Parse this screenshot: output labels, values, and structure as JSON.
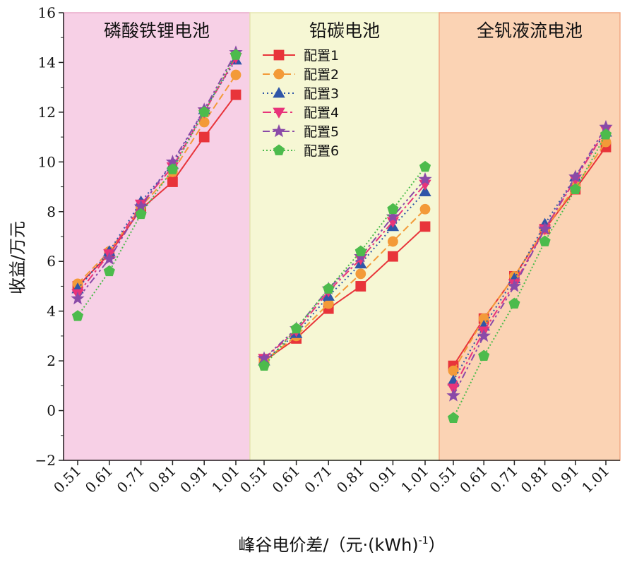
{
  "chart_data": {
    "type": "line",
    "ylabel": "收益/万元",
    "xlabel": "峰谷电价差/（元·(kWh)",
    "xlabel_sup": "-1",
    "xlabel_close": "）",
    "ylim": [
      -2,
      16
    ],
    "yticks": [
      -2,
      0,
      2,
      4,
      6,
      8,
      10,
      12,
      14,
      16
    ],
    "categories": [
      "0.51",
      "0.61",
      "0.71",
      "0.81",
      "0.91",
      "1.01"
    ],
    "legend_location": "top-left of middle panel",
    "panels": [
      {
        "title": "磷酸铁锂电池",
        "bg": "#f7d0e6",
        "series": [
          {
            "name": "配置1",
            "values": [
              5.0,
              6.3,
              8.1,
              9.2,
              11.0,
              12.7
            ]
          },
          {
            "name": "配置2",
            "values": [
              5.1,
              6.4,
              8.2,
              9.6,
              11.6,
              13.5
            ]
          },
          {
            "name": "配置3",
            "values": [
              4.9,
              6.4,
              8.4,
              9.9,
              12.1,
              14.1
            ]
          },
          {
            "name": "配置4",
            "values": [
              4.7,
              6.3,
              8.3,
              9.8,
              12.0,
              14.2
            ]
          },
          {
            "name": "配置5",
            "values": [
              4.5,
              6.1,
              8.2,
              10.0,
              12.1,
              14.4
            ]
          },
          {
            "name": "配置6",
            "values": [
              3.8,
              5.6,
              7.9,
              9.7,
              12.0,
              14.3
            ]
          }
        ]
      },
      {
        "title": "铅碳电池",
        "bg": "#f6f7d4",
        "series": [
          {
            "name": "配置1",
            "values": [
              2.0,
              2.9,
              4.1,
              5.0,
              6.2,
              7.4
            ]
          },
          {
            "name": "配置2",
            "values": [
              2.0,
              3.0,
              4.3,
              5.5,
              6.8,
              8.1
            ]
          },
          {
            "name": "配置3",
            "values": [
              2.0,
              3.1,
              4.6,
              5.9,
              7.4,
              8.8
            ]
          },
          {
            "name": "配置4",
            "values": [
              2.1,
              3.2,
              4.8,
              6.1,
              7.6,
              9.1
            ]
          },
          {
            "name": "配置5",
            "values": [
              2.1,
              3.3,
              4.9,
              6.2,
              7.8,
              9.3
            ]
          },
          {
            "name": "配置6",
            "values": [
              1.8,
              3.3,
              4.9,
              6.4,
              8.1,
              9.8
            ]
          }
        ]
      },
      {
        "title": "全钒液流电池",
        "bg": "#fbd3b4",
        "series": [
          {
            "name": "配置1",
            "values": [
              1.8,
              3.7,
              5.4,
              7.3,
              8.9,
              10.6
            ]
          },
          {
            "name": "配置2",
            "values": [
              1.6,
              3.7,
              5.4,
              7.3,
              9.0,
              10.8
            ]
          },
          {
            "name": "配置3",
            "values": [
              1.2,
              3.4,
              5.3,
              7.5,
              9.4,
              11.2
            ]
          },
          {
            "name": "配置4",
            "values": [
              0.9,
              3.2,
              5.1,
              7.3,
              9.3,
              11.3
            ]
          },
          {
            "name": "配置5",
            "values": [
              0.6,
              3.0,
              5.0,
              7.3,
              9.4,
              11.4
            ]
          },
          {
            "name": "配置6",
            "values": [
              -0.3,
              2.2,
              4.3,
              6.8,
              8.9,
              11.1
            ]
          }
        ]
      }
    ],
    "styles": [
      {
        "name": "配置1",
        "color": "#e8343a",
        "marker": "square",
        "dash": ""
      },
      {
        "name": "配置2",
        "color": "#f39a38",
        "marker": "circle",
        "dash": "10,5"
      },
      {
        "name": "配置3",
        "color": "#2f56a8",
        "marker": "triangle-up",
        "dash": "2,4"
      },
      {
        "name": "配置4",
        "color": "#e8347a",
        "marker": "triangle-down",
        "dash": "12,4,3,4"
      },
      {
        "name": "配置5",
        "color": "#8a4aa8",
        "marker": "star",
        "dash": "10,4,3,4,3,4"
      },
      {
        "name": "配置6",
        "color": "#4cbb4c",
        "marker": "pentagon",
        "dash": "2,3"
      }
    ]
  }
}
